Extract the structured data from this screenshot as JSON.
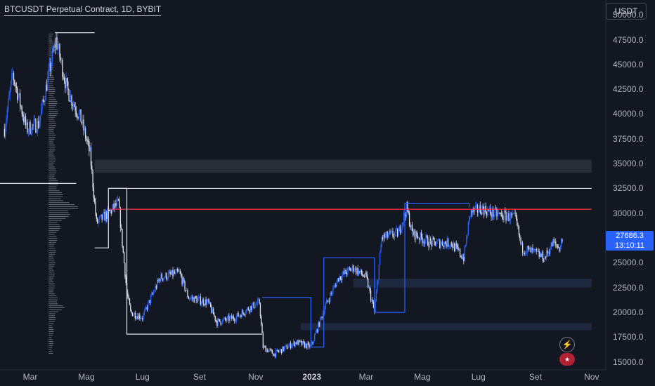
{
  "header": {
    "title": "BTCUSDT Perpetual Contract, 1D, BYBIT",
    "currency_button": "USDT"
  },
  "price_axis": {
    "labels": [
      "50000.0",
      "47500.0",
      "45000.0",
      "42500.0",
      "40000.0",
      "37500.0",
      "35000.0",
      "32500.0",
      "30000.0",
      "27500.0",
      "25000.0",
      "22500.0",
      "20000.0",
      "17500.0",
      "15000.0"
    ]
  },
  "time_axis": {
    "labels": [
      "Mar",
      "Mag",
      "Lug",
      "Set",
      "Nov",
      "2023",
      "Mar",
      "Mag",
      "Lug",
      "Set",
      "Nov"
    ]
  },
  "last_price": {
    "price": "27686.3",
    "countdown": "13:10:11",
    "color": "#2962ff"
  },
  "icons": {
    "lightning": "lightning-icon",
    "flag": "us-flag-icon"
  },
  "colors": {
    "background": "#131722",
    "up": "#2962ff",
    "down": "#e0e3eb",
    "red_line": "#f23645",
    "zone": "#2a2e39"
  },
  "chart_data": {
    "type": "candlestick",
    "title": "BTCUSDT Perpetual Contract, 1D, BYBIT",
    "ylim": [
      14200,
      51500
    ],
    "y_axis_side": "right",
    "close_path": [
      [
        "2022-02-01",
        38500
      ],
      [
        "2022-02-10",
        44000
      ],
      [
        "2022-02-25",
        38500
      ],
      [
        "2022-03-10",
        39000
      ],
      [
        "2022-03-29",
        47500
      ],
      [
        "2022-04-10",
        42500
      ],
      [
        "2022-04-25",
        39500
      ],
      [
        "2022-05-05",
        36000
      ],
      [
        "2022-05-12",
        29000
      ],
      [
        "2022-05-25",
        30000
      ],
      [
        "2022-06-05",
        31000
      ],
      [
        "2022-06-14",
        22000
      ],
      [
        "2022-06-18",
        20000
      ],
      [
        "2022-07-01",
        19500
      ],
      [
        "2022-07-20",
        23500
      ],
      [
        "2022-08-10",
        24000
      ],
      [
        "2022-08-20",
        21500
      ],
      [
        "2022-09-10",
        21000
      ],
      [
        "2022-09-20",
        19000
      ],
      [
        "2022-10-10",
        19500
      ],
      [
        "2022-10-26",
        20500
      ],
      [
        "2022-11-05",
        21000
      ],
      [
        "2022-11-09",
        16500
      ],
      [
        "2022-11-21",
        15800
      ],
      [
        "2022-12-15",
        17000
      ],
      [
        "2022-12-31",
        16500
      ],
      [
        "2023-01-15",
        20500
      ],
      [
        "2023-01-30",
        23500
      ],
      [
        "2023-02-15",
        24500
      ],
      [
        "2023-03-01",
        23500
      ],
      [
        "2023-03-10",
        20000
      ],
      [
        "2023-03-18",
        27500
      ],
      [
        "2023-04-05",
        28000
      ],
      [
        "2023-04-14",
        30500
      ],
      [
        "2023-04-20",
        28000
      ],
      [
        "2023-05-10",
        27000
      ],
      [
        "2023-06-01",
        27000
      ],
      [
        "2023-06-15",
        25500
      ],
      [
        "2023-06-22",
        30000
      ],
      [
        "2023-07-05",
        30500
      ],
      [
        "2023-07-15",
        30000
      ],
      [
        "2023-08-10",
        29500
      ],
      [
        "2023-08-17",
        26500
      ],
      [
        "2023-08-31",
        26000
      ],
      [
        "2023-09-11",
        25500
      ],
      [
        "2023-09-20",
        27000
      ],
      [
        "2023-09-27",
        26500
      ],
      [
        "2023-10-01",
        27686.3
      ]
    ],
    "horizontal_lines": [
      {
        "price": 48200,
        "color": "#e0e3eb",
        "from": "2022-03-28",
        "to": "2022-05-10"
      },
      {
        "price": 33000,
        "color": "#e0e3eb",
        "from": "2022-01-25",
        "to": "2022-04-20"
      },
      {
        "price": 32500,
        "color": "#e0e3eb",
        "from": "2022-05-25",
        "to": "2023-11-01"
      },
      {
        "price": 30400,
        "color": "#f23645",
        "from": "2022-05-25",
        "to": "2023-11-01"
      }
    ],
    "zones": [
      {
        "from_price": 34100,
        "to_price": 35400,
        "from": "2022-05-10",
        "to": "2023-11-01"
      },
      {
        "from_price": 22500,
        "to_price": 23400,
        "from": "2023-02-15",
        "to": "2023-11-01"
      },
      {
        "from_price": 18200,
        "to_price": 18900,
        "from": "2022-12-20",
        "to": "2023-11-01"
      }
    ],
    "step_lines": [
      {
        "color": "#e0e3eb",
        "points": [
          [
            "2022-05-10",
            26500
          ],
          [
            "2022-05-25",
            26500
          ],
          [
            "2022-05-25",
            32500
          ],
          [
            "2022-06-14",
            32500
          ],
          [
            "2022-06-14",
            17800
          ],
          [
            "2022-11-08",
            17800
          ],
          [
            "2022-11-08",
            17800
          ]
        ]
      },
      {
        "color": "#2962ff",
        "points": [
          [
            "2022-11-08",
            21500
          ],
          [
            "2022-12-31",
            21500
          ],
          [
            "2022-12-31",
            16500
          ],
          [
            "2023-01-14",
            16500
          ],
          [
            "2023-01-14",
            25500
          ],
          [
            "2023-02-15",
            25500
          ],
          [
            "2023-03-10",
            25500
          ],
          [
            "2023-03-10",
            20000
          ],
          [
            "2023-04-12",
            20000
          ],
          [
            "2023-04-12",
            31000
          ],
          [
            "2023-06-21",
            31000
          ],
          [
            "2023-06-21",
            30600
          ]
        ]
      }
    ],
    "volume_profile_anchor": {
      "from": "2022-01-25",
      "to": "2022-04-20",
      "poc_price": 30400
    }
  }
}
